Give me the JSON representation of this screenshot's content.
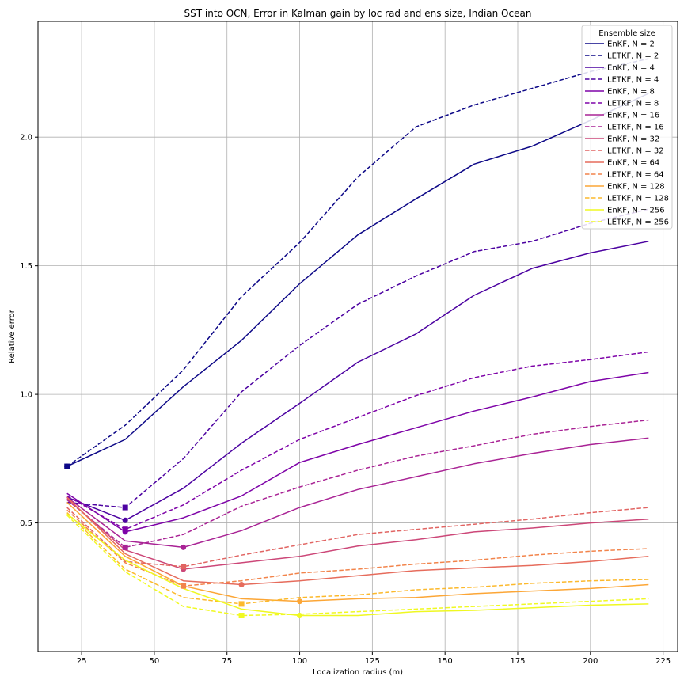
{
  "chart_data": {
    "type": "line",
    "title": "SST into OCN, Error in Kalman gain by loc rad and ens size, Indian Ocean",
    "xlabel": "Localization radius (m)",
    "ylabel": "Relative error",
    "xlim": [
      10,
      230
    ],
    "ylim": [
      0,
      2.45
    ],
    "xticks": [
      25,
      50,
      75,
      100,
      125,
      150,
      175,
      200,
      225
    ],
    "yticks": [
      0.5,
      1.0,
      1.5,
      2.0
    ],
    "grid": true,
    "legend_title": "Ensemble size",
    "legend_position": "top-right",
    "x": [
      20,
      40,
      60,
      80,
      100,
      120,
      140,
      160,
      180,
      200,
      220
    ],
    "series": [
      {
        "name": "EnKF, N = 2",
        "color": "#0d0887",
        "dash": "solid",
        "values": [
          0.72,
          0.825,
          1.03,
          1.21,
          1.43,
          1.62,
          1.76,
          1.895,
          1.965,
          2.065,
          2.17
        ],
        "marker": {
          "x": 20,
          "y": 0.72,
          "shape": "circle"
        }
      },
      {
        "name": "LETKF, N = 2",
        "color": "#0d0887",
        "dash": "dashed",
        "values": [
          0.72,
          0.88,
          1.095,
          1.38,
          1.59,
          1.845,
          2.04,
          2.125,
          2.19,
          2.255,
          2.305
        ],
        "marker": {
          "x": 20,
          "y": 0.72,
          "shape": "square"
        }
      },
      {
        "name": "EnKF, N = 4",
        "color": "#4c02a1",
        "dash": "solid",
        "values": [
          0.6,
          0.51,
          0.635,
          0.81,
          0.965,
          1.125,
          1.235,
          1.385,
          1.49,
          1.55,
          1.595
        ],
        "marker": {
          "x": 40,
          "y": 0.51,
          "shape": "circle"
        }
      },
      {
        "name": "LETKF, N = 4",
        "color": "#4c02a1",
        "dash": "dashed",
        "values": [
          0.58,
          0.56,
          0.75,
          1.01,
          1.19,
          1.35,
          1.46,
          1.555,
          1.595,
          1.665,
          1.72
        ],
        "marker": {
          "x": 40,
          "y": 0.56,
          "shape": "square"
        }
      },
      {
        "name": "EnKF, N = 8",
        "color": "#7e03a8",
        "dash": "solid",
        "values": [
          0.615,
          0.465,
          0.52,
          0.605,
          0.735,
          0.805,
          0.87,
          0.935,
          0.99,
          1.05,
          1.085
        ],
        "marker": {
          "x": 40,
          "y": 0.465,
          "shape": "circle"
        }
      },
      {
        "name": "LETKF, N = 8",
        "color": "#7e03a8",
        "dash": "dashed",
        "values": [
          0.605,
          0.475,
          0.57,
          0.705,
          0.825,
          0.91,
          0.995,
          1.065,
          1.11,
          1.135,
          1.165
        ],
        "marker": {
          "x": 40,
          "y": 0.475,
          "shape": "square"
        }
      },
      {
        "name": "EnKF, N = 16",
        "color": "#a92395",
        "dash": "solid",
        "values": [
          0.6,
          0.43,
          0.405,
          0.47,
          0.56,
          0.63,
          0.68,
          0.73,
          0.77,
          0.805,
          0.83
        ],
        "marker": {
          "x": 60,
          "y": 0.405,
          "shape": "circle"
        }
      },
      {
        "name": "LETKF, N = 16",
        "color": "#a92395",
        "dash": "dashed",
        "values": [
          0.59,
          0.405,
          0.455,
          0.565,
          0.64,
          0.705,
          0.76,
          0.8,
          0.845,
          0.875,
          0.9
        ],
        "marker": {
          "x": 40,
          "y": 0.405,
          "shape": "square"
        }
      },
      {
        "name": "EnKF, N = 32",
        "color": "#cc4778",
        "dash": "solid",
        "values": [
          0.595,
          0.395,
          0.32,
          0.345,
          0.37,
          0.41,
          0.435,
          0.465,
          0.48,
          0.5,
          0.515
        ],
        "marker": {
          "x": 60,
          "y": 0.32,
          "shape": "circle"
        }
      },
      {
        "name": "LETKF, N = 32",
        "color": "#e16462",
        "dash": "dashed",
        "values": [
          0.56,
          0.35,
          0.33,
          0.375,
          0.415,
          0.455,
          0.475,
          0.495,
          0.515,
          0.54,
          0.56
        ],
        "marker": {
          "x": 60,
          "y": 0.33,
          "shape": "square"
        }
      },
      {
        "name": "EnKF, N = 64",
        "color": "#e66c5c",
        "dash": "solid",
        "values": [
          0.6,
          0.38,
          0.275,
          0.26,
          0.275,
          0.295,
          0.315,
          0.325,
          0.335,
          0.35,
          0.37
        ],
        "marker": {
          "x": 80,
          "y": 0.26,
          "shape": "circle"
        }
      },
      {
        "name": "LETKF, N = 64",
        "color": "#f2844b",
        "dash": "dashed",
        "values": [
          0.55,
          0.345,
          0.255,
          0.275,
          0.305,
          0.32,
          0.34,
          0.355,
          0.375,
          0.39,
          0.4
        ],
        "marker": {
          "x": 60,
          "y": 0.255,
          "shape": "square"
        }
      },
      {
        "name": "EnKF, N = 128",
        "color": "#fca636",
        "dash": "solid",
        "values": [
          0.58,
          0.37,
          0.255,
          0.205,
          0.195,
          0.205,
          0.21,
          0.225,
          0.235,
          0.245,
          0.26
        ],
        "marker": {
          "x": 100,
          "y": 0.195,
          "shape": "circle"
        }
      },
      {
        "name": "LETKF, N = 128",
        "color": "#fcb92c",
        "dash": "dashed",
        "values": [
          0.54,
          0.32,
          0.21,
          0.185,
          0.21,
          0.22,
          0.24,
          0.25,
          0.265,
          0.275,
          0.28
        ],
        "marker": {
          "x": 80,
          "y": 0.185,
          "shape": "square"
        }
      },
      {
        "name": "EnKF, N = 256",
        "color": "#eff821",
        "dash": "solid",
        "values": [
          0.535,
          0.355,
          0.245,
          0.165,
          0.14,
          0.14,
          0.155,
          0.16,
          0.17,
          0.18,
          0.185
        ],
        "marker": {
          "x": 100,
          "y": 0.14,
          "shape": "circle"
        }
      },
      {
        "name": "LETKF, N = 256",
        "color": "#f0f921",
        "dash": "dashed",
        "values": [
          0.53,
          0.31,
          0.175,
          0.14,
          0.145,
          0.155,
          0.165,
          0.175,
          0.185,
          0.195,
          0.205
        ],
        "marker": {
          "x": 80,
          "y": 0.14,
          "shape": "square"
        }
      }
    ]
  }
}
